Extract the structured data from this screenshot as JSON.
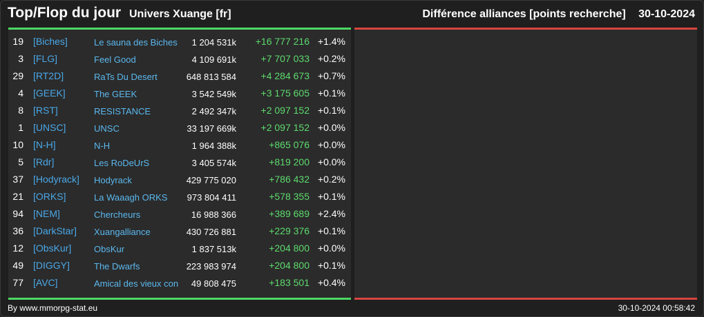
{
  "header": {
    "title": "Top/Flop du jour",
    "subtitle": "Univers Xuange [fr]",
    "right_label": "Différence alliances [points recherche]",
    "date": "30-10-2024"
  },
  "colors": {
    "background": "#1f1f1f",
    "panel": "#2b2b2b",
    "top_bar": "#4cd964",
    "flop_bar": "#d9453f",
    "tag": "#4aa8e8",
    "gain": "#5ddb6e"
  },
  "top_rows": [
    {
      "rank": "19",
      "tag": "[Biches]",
      "name": "Le sauna des Biches",
      "points": "1 204 531k",
      "diff": "+16 777 216",
      "pct": "+1.4%"
    },
    {
      "rank": "3",
      "tag": "[FLG]",
      "name": "Feel Good",
      "points": "4 109 691k",
      "diff": "+7 707 033",
      "pct": "+0.2%"
    },
    {
      "rank": "29",
      "tag": "[RT2D]",
      "name": "RaTs Du Desert",
      "points": "648 813 584",
      "diff": "+4 284 673",
      "pct": "+0.7%"
    },
    {
      "rank": "4",
      "tag": "[GEEK]",
      "name": "The GEEK",
      "points": "3 542 549k",
      "diff": "+3 175 605",
      "pct": "+0.1%"
    },
    {
      "rank": "8",
      "tag": "[RST]",
      "name": "RESISTANCE",
      "points": "2 492 347k",
      "diff": "+2 097 152",
      "pct": "+0.1%"
    },
    {
      "rank": "1",
      "tag": "[UNSC]",
      "name": "UNSC",
      "points": "33 197 669k",
      "diff": "+2 097 152",
      "pct": "+0.0%"
    },
    {
      "rank": "10",
      "tag": "[N-H]",
      "name": "N-H",
      "points": "1 964 388k",
      "diff": "+865 076",
      "pct": "+0.0%"
    },
    {
      "rank": "5",
      "tag": "[Rdr]",
      "name": "Les RoDeUrS",
      "points": "3 405 574k",
      "diff": "+819 200",
      "pct": "+0.0%"
    },
    {
      "rank": "37",
      "tag": "[Hodyrack]",
      "name": "Hodyrack",
      "points": "429 775 020",
      "diff": "+786 432",
      "pct": "+0.2%"
    },
    {
      "rank": "21",
      "tag": "[ORKS]",
      "name": "La Waaagh ORKS",
      "points": "973 804 411",
      "diff": "+578 355",
      "pct": "+0.1%"
    },
    {
      "rank": "94",
      "tag": "[NEM]",
      "name": "Chercheurs",
      "points": "16 988 366",
      "diff": "+389 689",
      "pct": "+2.4%"
    },
    {
      "rank": "36",
      "tag": "[DarkStar]",
      "name": "Xuangalliance",
      "points": "430 726 881",
      "diff": "+229 376",
      "pct": "+0.1%"
    },
    {
      "rank": "12",
      "tag": "[ObsKur]",
      "name": "ObsKur",
      "points": "1 837 513k",
      "diff": "+204 800",
      "pct": "+0.0%"
    },
    {
      "rank": "49",
      "tag": "[DIGGY]",
      "name": "The Dwarfs",
      "points": "223 983 974",
      "diff": "+204 800",
      "pct": "+0.1%"
    },
    {
      "rank": "77",
      "tag": "[AVC]",
      "name": "Amical des vieux con",
      "points": "49 808 475",
      "diff": "+183 501",
      "pct": "+0.4%"
    }
  ],
  "flop_rows": [],
  "footer": {
    "source": "By www.mmorpg-stat.eu",
    "timestamp": "30-10-2024 00:58:42"
  }
}
